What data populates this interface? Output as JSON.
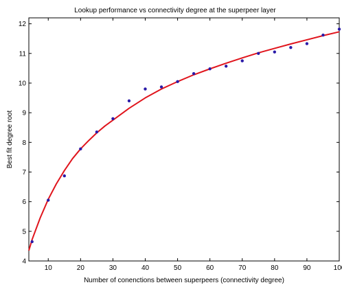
{
  "chart_data": {
    "type": "scatter",
    "title": "Lookup performance vs connectivity degree at the superpeer layer",
    "xlabel": "Number of conenctions between superpeers (connectivity degree)",
    "ylabel": "Best fit degree root",
    "xlim": [
      4,
      100
    ],
    "ylim": [
      4,
      12.2
    ],
    "xticks": [
      10,
      20,
      30,
      40,
      50,
      60,
      70,
      80,
      90,
      100
    ],
    "yticks": [
      4,
      5,
      6,
      7,
      8,
      9,
      10,
      11,
      12
    ],
    "grid": false,
    "series": [
      {
        "kind": "points",
        "color": "#2a1aa8",
        "x": [
          5,
          10,
          15,
          20,
          25,
          30,
          35,
          40,
          45,
          50,
          55,
          60,
          65,
          70,
          75,
          80,
          85,
          90,
          95,
          100
        ],
        "y": [
          4.65,
          6.05,
          6.87,
          7.78,
          8.35,
          8.8,
          9.4,
          9.8,
          9.87,
          10.05,
          10.32,
          10.48,
          10.57,
          10.75,
          11.0,
          11.05,
          11.2,
          11.33,
          11.62,
          11.82
        ]
      },
      {
        "kind": "fit-curve",
        "color": "#e0141c",
        "x": [
          4,
          5,
          7.5,
          10,
          12.5,
          15,
          17.5,
          20,
          22.5,
          25,
          27.5,
          30,
          35,
          40,
          45,
          50,
          55,
          60,
          65,
          70,
          75,
          80,
          85,
          90,
          95,
          100
        ],
        "y": [
          4.35,
          4.72,
          5.45,
          6.08,
          6.6,
          7.05,
          7.45,
          7.78,
          8.06,
          8.32,
          8.55,
          8.75,
          9.15,
          9.5,
          9.8,
          10.05,
          10.28,
          10.48,
          10.67,
          10.85,
          11.02,
          11.17,
          11.32,
          11.46,
          11.6,
          11.73
        ]
      }
    ]
  }
}
